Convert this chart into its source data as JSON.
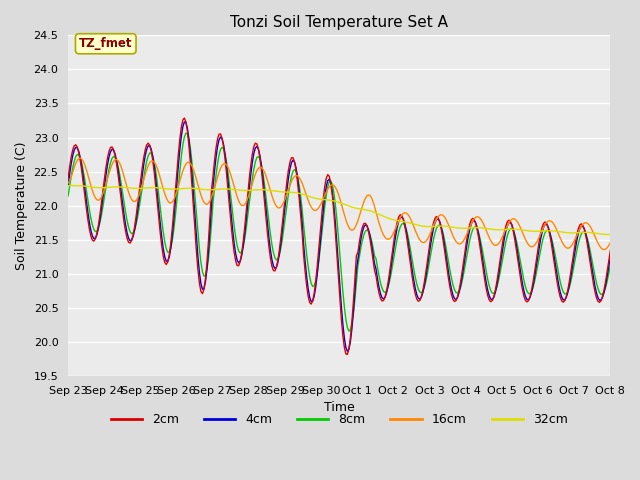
{
  "title": "Tonzi Soil Temperature Set A",
  "xlabel": "Time",
  "ylabel": "Soil Temperature (C)",
  "annotation": "TZ_fmet",
  "annotation_color": "#880000",
  "annotation_bg": "#ffffcc",
  "annotation_border": "#aaaa00",
  "ylim": [
    19.5,
    24.5
  ],
  "yticks": [
    19.5,
    20.0,
    20.5,
    21.0,
    21.5,
    22.0,
    22.5,
    23.0,
    23.5,
    24.0,
    24.5
  ],
  "xtick_labels": [
    "Sep 23",
    "Sep 24",
    "Sep 25",
    "Sep 26",
    "Sep 27",
    "Sep 28",
    "Sep 29",
    "Sep 30",
    "Oct 1",
    "Oct 2",
    "Oct 3",
    "Oct 4",
    "Oct 5",
    "Oct 6",
    "Oct 7",
    "Oct 8"
  ],
  "series_labels": [
    "2cm",
    "4cm",
    "8cm",
    "16cm",
    "32cm"
  ],
  "series_colors": [
    "#dd0000",
    "#0000dd",
    "#00cc00",
    "#ff8800",
    "#dddd00"
  ],
  "bg_color": "#dcdcdc",
  "plot_bg": "#ebebeb",
  "grid_color": "#ffffff",
  "figsize": [
    6.4,
    4.8
  ],
  "dpi": 100
}
